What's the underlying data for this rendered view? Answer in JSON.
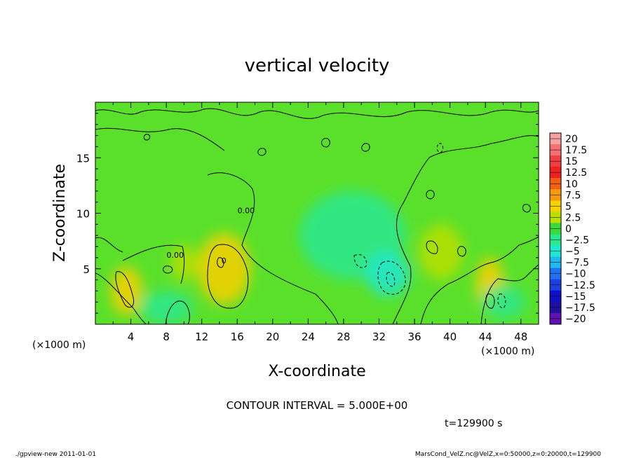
{
  "chart_data": {
    "type": "heatmap",
    "title": "vertical velocity",
    "xlabel": "X-coordinate",
    "ylabel": "Z-coordinate",
    "x_unit": "(×1000 m)",
    "y_unit": "(×1000 m)",
    "xlim": [
      0,
      50
    ],
    "ylim": [
      0,
      20
    ],
    "x_ticks": [
      4,
      8,
      12,
      16,
      20,
      24,
      28,
      32,
      36,
      40,
      44,
      48
    ],
    "y_ticks": [
      5,
      10,
      15
    ],
    "colorbar": {
      "levels": [
        "20",
        "17.5",
        "15",
        "12.5",
        "10",
        "7.5",
        "5",
        "2.5",
        "0",
        "−2.5",
        "−5",
        "−7.5",
        "−10",
        "−12.5",
        "−15",
        "−17.5",
        "−20"
      ],
      "colors": [
        "#f7a0a0",
        "#f57070",
        "#f24040",
        "#ee2020",
        "#f06010",
        "#f59a10",
        "#f8d000",
        "#b8e000",
        "#3ad83a",
        "#28e890",
        "#20e8d0",
        "#20b8f0",
        "#2070f0",
        "#1a40e0",
        "#1010c8",
        "#2010a0",
        "#6010b0"
      ]
    },
    "field_blobs": [
      {
        "x": 14.5,
        "z": 5.0,
        "rx": 3.0,
        "rz": 3.2,
        "value": 6.0
      },
      {
        "x": 3.5,
        "z": 3.0,
        "rx": 1.8,
        "rz": 2.2,
        "value": 4.0
      },
      {
        "x": 10.0,
        "z": 5.5,
        "rx": 1.5,
        "rz": 1.6,
        "value": 3.0
      },
      {
        "x": 44.5,
        "z": 3.5,
        "rx": 1.6,
        "rz": 2.5,
        "value": 4.0
      },
      {
        "x": 39.0,
        "z": 6.5,
        "rx": 2.5,
        "rz": 2.5,
        "value": 3.0
      },
      {
        "x": 29.0,
        "z": 8.0,
        "rx": 6.0,
        "rz": 4.0,
        "value": -2.5
      },
      {
        "x": 33.0,
        "z": 4.5,
        "rx": 2.5,
        "rz": 2.0,
        "value": -5.0
      },
      {
        "x": 8.0,
        "z": 1.5,
        "rx": 3.0,
        "rz": 1.5,
        "value": -2.0
      },
      {
        "x": 46.0,
        "z": 2.0,
        "rx": 2.5,
        "rz": 1.5,
        "value": -3.0
      }
    ],
    "contour_labels": [
      {
        "x": 14.5,
        "z": 5.5,
        "text": "0"
      },
      {
        "x": 9.0,
        "z": 6.0,
        "text": "0.00"
      },
      {
        "x": 17.0,
        "z": 10.0,
        "text": "0.00"
      }
    ],
    "contour_interval_text": "CONTOUR INTERVAL = 5.000E+00",
    "time_text": "t=129900 s"
  },
  "footer": {
    "left": "./gpview-new   2011-01-01",
    "right": "MarsCond_VelZ.nc@VelZ,x=0:50000,z=0:20000,t=129900"
  }
}
